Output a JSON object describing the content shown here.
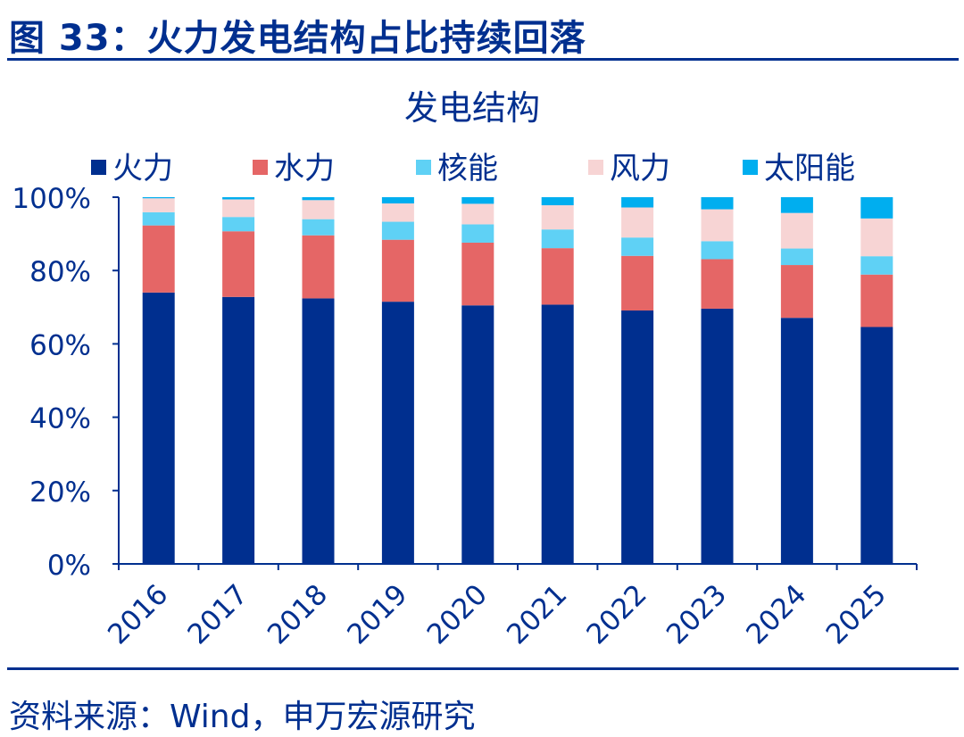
{
  "figure": {
    "title": "图 33：火力发电结构占比持续回落",
    "source": "资料来源：Wind，申万宏源研究"
  },
  "chart_data": {
    "type": "bar",
    "stacked": true,
    "title": "发电结构",
    "xlabel": "",
    "ylabel": "",
    "ylim": [
      0,
      100
    ],
    "yticks": [
      0,
      20,
      40,
      60,
      80,
      100
    ],
    "ytick_labels": [
      "0%",
      "20%",
      "40%",
      "60%",
      "80%",
      "100%"
    ],
    "categories": [
      "2016",
      "2017",
      "2018",
      "2019",
      "2020",
      "2021",
      "2022",
      "2023",
      "2024",
      "2025"
    ],
    "legend_position": "top",
    "series": [
      {
        "name": "火力",
        "color": "#002f8f",
        "values": [
          74.0,
          72.8,
          72.4,
          71.5,
          70.5,
          70.7,
          69.1,
          69.6,
          67.1,
          64.6
        ]
      },
      {
        "name": "水力",
        "color": "#e56666",
        "values": [
          18.3,
          17.9,
          17.2,
          16.9,
          17.1,
          15.4,
          14.9,
          13.5,
          14.4,
          14.3
        ]
      },
      {
        "name": "核能",
        "color": "#5fd1f5",
        "values": [
          3.6,
          3.9,
          4.4,
          4.9,
          5.0,
          5.1,
          5.0,
          4.9,
          4.5,
          5.0
        ]
      },
      {
        "name": "风力",
        "color": "#f7d4d4",
        "values": [
          3.8,
          4.8,
          5.2,
          5.0,
          5.6,
          6.6,
          8.2,
          8.7,
          9.7,
          10.3
        ]
      },
      {
        "name": "太阳能",
        "color": "#00aeef",
        "values": [
          0.3,
          0.6,
          0.8,
          1.7,
          1.8,
          2.2,
          2.8,
          3.3,
          4.3,
          5.8
        ]
      }
    ]
  }
}
